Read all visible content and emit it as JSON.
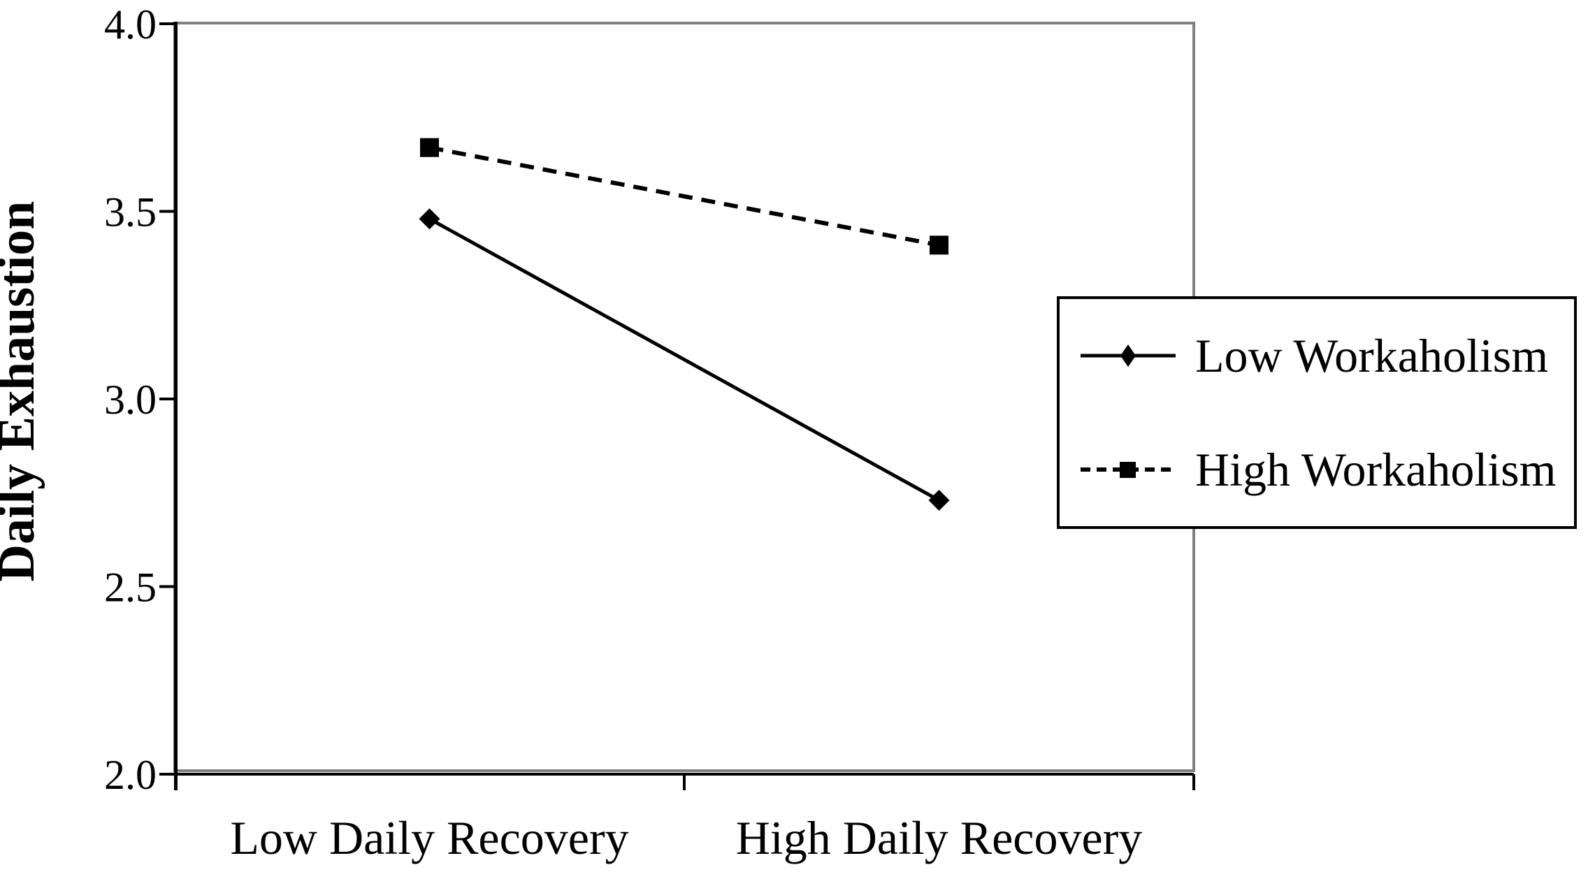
{
  "chart_data": {
    "type": "line",
    "title": "",
    "categories": [
      "Low Daily Recovery",
      "High Daily Recovery"
    ],
    "series": [
      {
        "name": "Low Workaholism",
        "values": [
          3.48,
          2.73
        ],
        "line_style": "solid",
        "marker": "diamond",
        "color": "#000000"
      },
      {
        "name": "High Workaholism",
        "values": [
          3.67,
          3.41
        ],
        "line_style": "dashed",
        "marker": "square",
        "color": "#000000"
      }
    ],
    "xlabel": "",
    "ylabel": "Daily Exhaustion",
    "ylim": [
      2.0,
      4.0
    ],
    "yticks": [
      2.0,
      2.5,
      3.0,
      3.5,
      4.0
    ],
    "ytick_labels": [
      "2.0",
      "2.5",
      "3.0",
      "3.5",
      "4.0"
    ],
    "grid": false,
    "legend_position": "right",
    "colors": {
      "line": "#000000",
      "text": "#000000",
      "frame": "#808080",
      "background": "#ffffff"
    }
  }
}
